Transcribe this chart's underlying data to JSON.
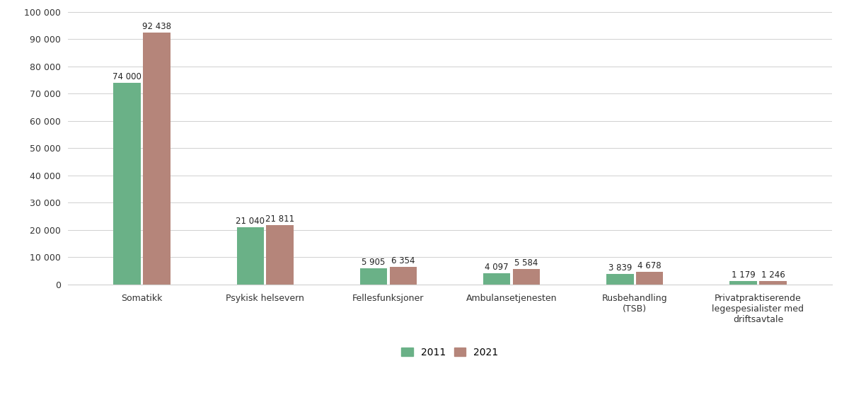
{
  "categories": [
    "Somatikk",
    "Psykisk helsevern",
    "Fellesfunksjoner",
    "Ambulansetjenesten",
    "Rusbehandling\n(TSB)",
    "Privatpraktiserende\nlegespesialister med\ndriftsavtale"
  ],
  "values_2011": [
    74000,
    21040,
    5905,
    4097,
    3839,
    1179
  ],
  "values_2021": [
    92438,
    21811,
    6354,
    5584,
    4678,
    1246
  ],
  "labels_2011": [
    "74 000",
    "21 040",
    "5 905",
    "4 097",
    "3 839",
    "1 179"
  ],
  "labels_2021": [
    "92 438",
    "21 811",
    "6 354",
    "5 584",
    "4 678",
    "1 246"
  ],
  "color_2011": "#6ab187",
  "color_2021": "#b5857a",
  "ylim": [
    0,
    100000
  ],
  "yticks": [
    0,
    10000,
    20000,
    30000,
    40000,
    50000,
    60000,
    70000,
    80000,
    90000,
    100000
  ],
  "ytick_labels": [
    "0",
    "10 000",
    "20 000",
    "30 000",
    "40 000",
    "50 000",
    "60 000",
    "70 000",
    "80 000",
    "90 000",
    "100 000"
  ],
  "legend_2011": "2011",
  "legend_2021": "2021",
  "background_color": "#ffffff",
  "bar_width": 0.22,
  "label_fontsize": 8.5,
  "tick_fontsize": 9,
  "legend_fontsize": 10,
  "grid_color": "#d0d0d0"
}
